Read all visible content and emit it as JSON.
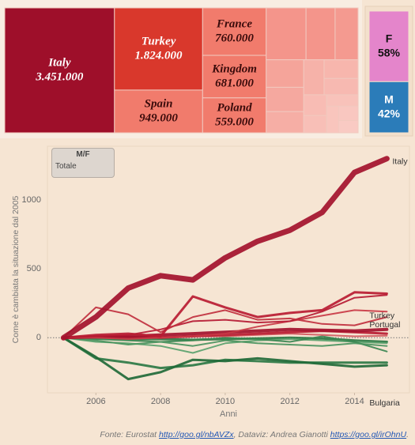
{
  "chart_data": [
    {
      "type": "treemap",
      "categories": [
        "Italy",
        "Turkey",
        "Spain",
        "France",
        "Kingdom",
        "Poland",
        null,
        null,
        null,
        null,
        null,
        null,
        null,
        null,
        null,
        null,
        null,
        null,
        null,
        null,
        null
      ],
      "values": [
        3451000,
        1824000,
        949000,
        760000,
        681000,
        559000,
        520000,
        380000,
        300000,
        260000,
        230000,
        200000,
        180000,
        160000,
        140000,
        120000,
        100000,
        90000,
        80000,
        70000,
        60000
      ],
      "value_labels": [
        "3.451.000",
        "1.824.000",
        "949.000",
        "760.000",
        "681.000",
        "559.000",
        null,
        null,
        null,
        null,
        null,
        null,
        null,
        null,
        null,
        null,
        null,
        null,
        null,
        null,
        null
      ],
      "colors": [
        "#9e0f2a",
        "#d9382c",
        "#f17b6c",
        "#f17b6c",
        "#f17b6c",
        "#f17b6c",
        "#f4958b",
        "#f4958b",
        "#f49a90",
        "#f5a49a",
        "#f5a89f",
        "#f6aea5",
        "#f6b2a9",
        "#f7b6ad",
        "#f7b9b1",
        "#f8bcb4",
        "#f8bfb7",
        "#f8c2ba",
        "#f9c5bd",
        "#f9c7c0",
        "#f9cac3"
      ]
    },
    {
      "type": "stacked_bar",
      "categories": [
        "F",
        "M"
      ],
      "values": [
        58,
        42
      ],
      "value_labels": [
        "58%",
        "42%"
      ],
      "colors": [
        "#e485cb",
        "#2b7cb9"
      ]
    },
    {
      "type": "line",
      "y_label": "Come è cambiata la situazione dal 2005",
      "x_label": "Anni",
      "x": [
        2005,
        2006,
        2007,
        2008,
        2009,
        2010,
        2011,
        2012,
        2013,
        2014,
        2015
      ],
      "xlim": [
        2004.5,
        2015.7
      ],
      "xticks": [
        2006,
        2008,
        2010,
        2012,
        2014
      ],
      "ylim": [
        -400,
        1390
      ],
      "yticks": [
        0,
        500,
        1000
      ],
      "grid": false,
      "zero_line": true,
      "series": [
        {
          "name": "Italy",
          "color": "#a3122c",
          "width": 7,
          "values": [
            0,
            150,
            360,
            450,
            420,
            580,
            700,
            780,
            910,
            1200,
            1300
          ]
        },
        {
          "name": "Turkey",
          "color": "#b81c32",
          "width": 3,
          "values": [
            0,
            20,
            30,
            10,
            300,
            220,
            150,
            180,
            200,
            330,
            320
          ]
        },
        {
          "name": "Portugal",
          "color": "#c0303e",
          "width": 2,
          "values": [
            0,
            220,
            170,
            40,
            150,
            200,
            130,
            140,
            100,
            90,
            150
          ]
        },
        {
          "name": null,
          "color": "#b51a33",
          "width": 2,
          "values": [
            0,
            10,
            20,
            60,
            120,
            130,
            110,
            120,
            190,
            290,
            310
          ]
        },
        {
          "name": null,
          "color": "#c93a45",
          "width": 2,
          "values": [
            0,
            0,
            -10,
            0,
            10,
            30,
            80,
            120,
            160,
            200,
            190
          ]
        },
        {
          "name": null,
          "color": "#a3122c",
          "width": 4,
          "values": [
            0,
            5,
            10,
            20,
            30,
            40,
            50,
            60,
            55,
            50,
            60
          ]
        },
        {
          "name": null,
          "color": "#b81c32",
          "width": 3,
          "values": [
            0,
            10,
            5,
            0,
            10,
            20,
            30,
            40,
            50,
            40,
            30
          ]
        },
        {
          "name": null,
          "color": "#d05a5f",
          "width": 2,
          "values": [
            0,
            0,
            0,
            5,
            10,
            10,
            20,
            30,
            20,
            10,
            15
          ]
        },
        {
          "name": "Bulgaria",
          "color": "#216a38",
          "width": 3,
          "values": [
            0,
            -140,
            -300,
            -250,
            -160,
            -170,
            -150,
            -170,
            -190,
            -210,
            -200
          ]
        },
        {
          "name": null,
          "color": "#2c7a45",
          "width": 3,
          "values": [
            0,
            -150,
            -180,
            -220,
            -200,
            -160,
            -170,
            -180,
            -180,
            -180,
            -180
          ]
        },
        {
          "name": null,
          "color": "#4a9460",
          "width": 2,
          "values": [
            0,
            -20,
            -50,
            -30,
            -60,
            -20,
            -40,
            -50,
            -60,
            -40,
            -60
          ]
        },
        {
          "name": null,
          "color": "#3b8753",
          "width": 2,
          "values": [
            0,
            -10,
            -20,
            -30,
            -20,
            0,
            -10,
            -30,
            10,
            -30,
            -100
          ]
        },
        {
          "name": null,
          "color": "#5aa26e",
          "width": 2,
          "values": [
            0,
            -30,
            -40,
            -60,
            -110,
            -40,
            -20,
            -10,
            -20,
            -30,
            -40
          ]
        },
        {
          "name": null,
          "color": "#2c7a45",
          "width": 3,
          "values": [
            0,
            -5,
            -10,
            -10,
            -15,
            -10,
            -5,
            0,
            -5,
            -20,
            -30
          ]
        }
      ]
    }
  ],
  "filter": {
    "title": "M/F",
    "value": "Totale"
  },
  "footer": {
    "prefix": "Fonte: Eurostat ",
    "link1": "http://goo.gl/nbAVZx",
    "middle": ", Dataviz: Andrea Gianotti ",
    "link2": "https://goo.gl/irOhnU",
    "suffix": "."
  }
}
